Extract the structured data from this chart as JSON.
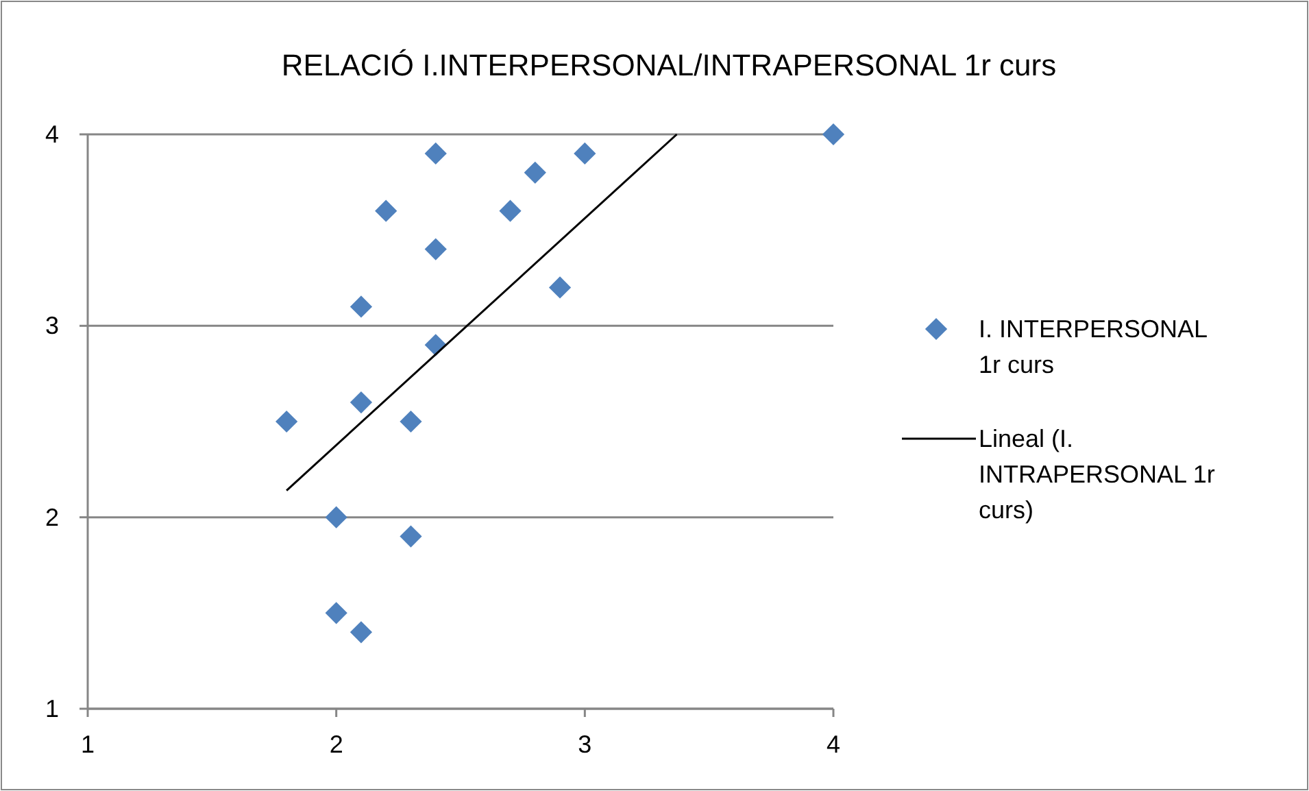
{
  "chart_data": {
    "type": "scatter",
    "title": "RELACIÓ I.INTERPERSONAL/INTRAPERSONAL 1r curs",
    "xlim": [
      1,
      4
    ],
    "ylim": [
      1,
      4
    ],
    "xticks": [
      1,
      2,
      3,
      4
    ],
    "yticks": [
      1,
      2,
      3,
      4
    ],
    "grid": "y",
    "legend": "right",
    "marker": "diamond",
    "series": [
      {
        "name": "I. INTERPERSONAL 1r curs",
        "color": "#4f81bd",
        "x": [
          1.8,
          2.0,
          2.0,
          2.1,
          2.1,
          2.1,
          2.2,
          2.3,
          2.3,
          2.4,
          2.4,
          2.4,
          2.7,
          2.8,
          2.9,
          3.0,
          4.0
        ],
        "values": [
          2.5,
          2.0,
          1.5,
          1.4,
          2.6,
          3.1,
          3.6,
          2.5,
          1.9,
          3.9,
          3.4,
          2.9,
          3.6,
          3.8,
          3.2,
          3.9,
          4.0
        ]
      },
      {
        "name": "Lineal (I. INTRAPERSONAL 1r curs)",
        "type": "line",
        "marker": "none",
        "color": "#000000",
        "x": [
          1.8,
          3.37
        ],
        "values": [
          2.14,
          4.0
        ]
      }
    ]
  }
}
